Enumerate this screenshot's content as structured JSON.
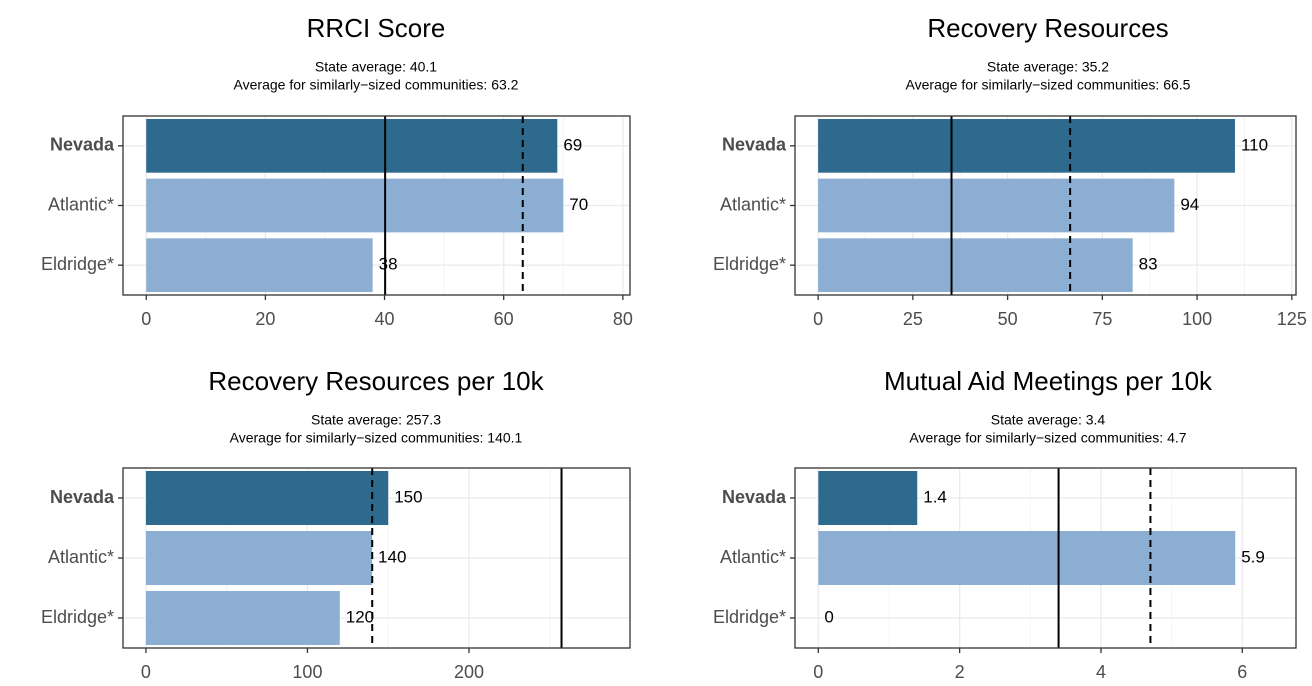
{
  "chart_data": [
    {
      "type": "bar",
      "title": "RRCI Score",
      "subtitle": [
        "State average: 40.1",
        "Average for similarly−sized communities: 63.2"
      ],
      "categories": [
        "Nevada",
        "Atlantic*",
        "Eldridge*"
      ],
      "values": [
        69,
        70,
        38
      ],
      "colors": [
        "#2e6a8e",
        "#8caed3",
        "#8caed3"
      ],
      "bold": [
        true,
        false,
        false
      ],
      "reference_lines": [
        {
          "value": 40.1,
          "style": "solid"
        },
        {
          "value": 63.2,
          "style": "dashed"
        }
      ],
      "xlim": [
        -3.9,
        81.2
      ],
      "xticks": [
        0,
        20,
        40,
        60,
        80
      ],
      "xminor": [
        10,
        30,
        50,
        70
      ],
      "grid": true
    },
    {
      "type": "bar",
      "title": "Recovery Resources",
      "subtitle": [
        "State average: 35.2",
        "Average for similarly−sized communities: 66.5"
      ],
      "categories": [
        "Nevada",
        "Atlantic*",
        "Eldridge*"
      ],
      "values": [
        110,
        94,
        83
      ],
      "colors": [
        "#2e6a8e",
        "#8caed3",
        "#8caed3"
      ],
      "bold": [
        true,
        false,
        false
      ],
      "reference_lines": [
        {
          "value": 35.2,
          "style": "solid"
        },
        {
          "value": 66.5,
          "style": "dashed"
        }
      ],
      "xlim": [
        -6.1,
        126.1
      ],
      "xticks": [
        0,
        25,
        50,
        75,
        100,
        125
      ],
      "xminor": [
        12.5,
        37.5,
        62.5,
        87.5,
        112.5
      ],
      "grid": true
    },
    {
      "type": "bar",
      "title": "Recovery Resources per 10k",
      "subtitle": [
        "State average: 257.3",
        "Average for similarly−sized communities: 140.1"
      ],
      "categories": [
        "Nevada",
        "Atlantic*",
        "Eldridge*"
      ],
      "values": [
        150,
        140,
        120
      ],
      "colors": [
        "#2e6a8e",
        "#8caed3",
        "#8caed3"
      ],
      "bold": [
        true,
        false,
        false
      ],
      "reference_lines": [
        {
          "value": 257.3,
          "style": "solid"
        },
        {
          "value": 140.1,
          "style": "dashed"
        }
      ],
      "xlim": [
        -14.2,
        299.7
      ],
      "xticks": [
        0,
        100,
        200
      ],
      "xminor": [
        50,
        150,
        250
      ],
      "grid": true
    },
    {
      "type": "bar",
      "title": "Mutual Aid Meetings per 10k",
      "subtitle": [
        "State average: 3.4",
        "Average for similarly−sized communities: 4.7"
      ],
      "categories": [
        "Nevada",
        "Atlantic*",
        "Eldridge*"
      ],
      "values": [
        1.4,
        5.9,
        0
      ],
      "colors": [
        "#2e6a8e",
        "#8caed3",
        "#8caed3"
      ],
      "bold": [
        true,
        false,
        false
      ],
      "reference_lines": [
        {
          "value": 3.4,
          "style": "solid"
        },
        {
          "value": 4.7,
          "style": "dashed"
        }
      ],
      "xlim": [
        -0.33,
        6.76
      ],
      "xticks": [
        0,
        2,
        4,
        6
      ],
      "xminor": [
        1,
        3,
        5
      ],
      "grid": true
    }
  ]
}
